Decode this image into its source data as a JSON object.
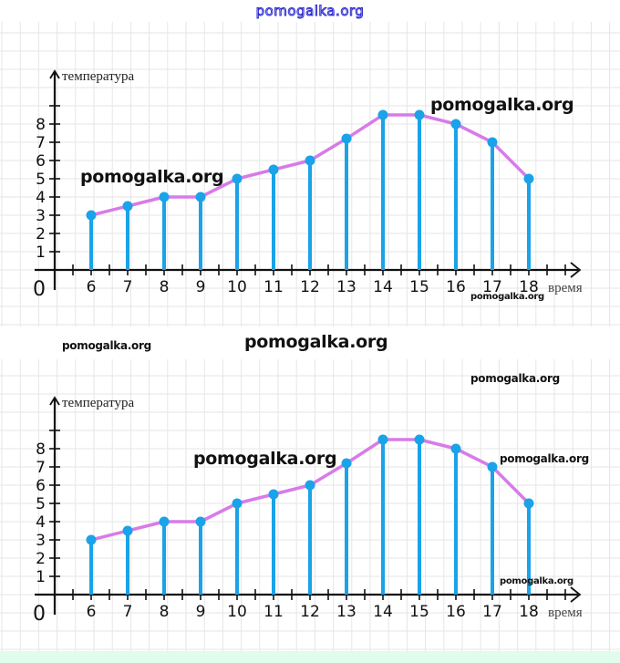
{
  "page": {
    "top_watermark": "pomogalka.org",
    "colors": {
      "grid": "#e6e6e6",
      "axis": "#111111",
      "stem": "#1aa3e8",
      "line": "#d77be8",
      "point": "#1aa3e8",
      "footer": "#dffcec"
    }
  },
  "watermarks": {
    "chart1_a": "pomogalka.org",
    "chart1_b": "pomogalka.org",
    "chart1_c": "pomogalka.org",
    "between_a": "pomogalka.org",
    "between_b": "pomogalka.org",
    "chart2_top_right": "pomogalka.org",
    "chart2_a": "pomogalka.org",
    "chart2_b": "pomogalka.org",
    "chart2_c": "pomogalka.org"
  },
  "chart_data": [
    {
      "type": "line",
      "title": "",
      "xlabel": "время",
      "ylabel": "температура",
      "origin_label": "0",
      "x": [
        6,
        7,
        8,
        9,
        10,
        11,
        12,
        13,
        14,
        15,
        16,
        17,
        18
      ],
      "y": [
        3,
        3.5,
        4,
        4,
        5,
        5.5,
        6,
        7.2,
        8.5,
        8.5,
        8,
        7,
        5
      ],
      "x_tick_labels": [
        "6",
        "7",
        "8",
        "9",
        "10",
        "11",
        "12",
        "13",
        "14",
        "15",
        "16",
        "17",
        "18"
      ],
      "y_tick_labels": [
        "1",
        "2",
        "3",
        "4",
        "5",
        "6",
        "7",
        "8"
      ],
      "xlim": [
        4.5,
        19
      ],
      "ylim": [
        0,
        9
      ],
      "grid": true,
      "stems": true,
      "legend": "none"
    },
    {
      "type": "line",
      "title": "",
      "xlabel": "время",
      "ylabel": "температура",
      "origin_label": "0",
      "x": [
        6,
        7,
        8,
        9,
        10,
        11,
        12,
        13,
        14,
        15,
        16,
        17,
        18
      ],
      "y": [
        3,
        3.5,
        4,
        4,
        5,
        5.5,
        6,
        7.2,
        8.5,
        8.5,
        8,
        7,
        5
      ],
      "x_tick_labels": [
        "6",
        "7",
        "8",
        "9",
        "10",
        "11",
        "12",
        "13",
        "14",
        "15",
        "16",
        "17",
        "18"
      ],
      "y_tick_labels": [
        "1",
        "2",
        "3",
        "4",
        "5",
        "6",
        "7",
        "8"
      ],
      "xlim": [
        4.5,
        19
      ],
      "ylim": [
        0,
        9
      ],
      "grid": true,
      "stems": true,
      "legend": "none"
    }
  ]
}
